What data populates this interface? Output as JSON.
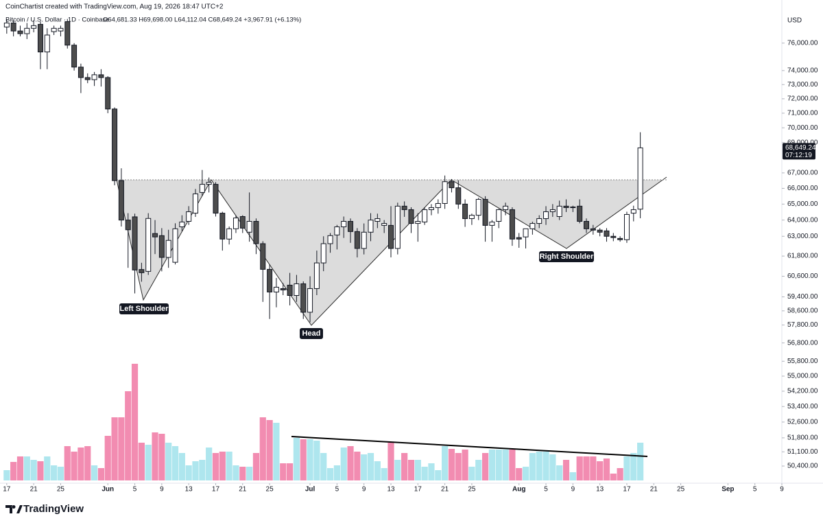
{
  "chart_data": {
    "type": "candlestick",
    "attribution": "CoinChartist created with TradingView.com, Aug 19, 2026 18:47 UTC+2",
    "symbol": "Bitcoin / U.S. Dollar · 1D · Coinbase",
    "ohlc_text": "O64,681.33 H69,698.00 L64,112.04 C68,649.24 +3,967.91 (+6.13%)",
    "currency": "USD",
    "last_price_label": "68,649.24",
    "countdown": "07:12:19",
    "brand": "TradingView",
    "annotations": [
      "Left Shoulder",
      "Head",
      "Right Shoulder"
    ],
    "log_scale": true,
    "grid": false,
    "up_color": "#ffffff",
    "down_color": "#4d4d4d",
    "volume_up_color": "#aee6ee",
    "volume_down_color": "#f28cb1",
    "xlim": [
      "2026-05-16",
      "2026-09-09"
    ],
    "xticks": [
      {
        "value": "2026-05-17",
        "label": "17"
      },
      {
        "value": "2026-05-21",
        "label": "21"
      },
      {
        "value": "2026-05-25",
        "label": "25"
      },
      {
        "value": "2026-06-01",
        "label": "Jun"
      },
      {
        "value": "2026-06-05",
        "label": "5"
      },
      {
        "value": "2026-06-09",
        "label": "9"
      },
      {
        "value": "2026-06-13",
        "label": "13"
      },
      {
        "value": "2026-06-17",
        "label": "17"
      },
      {
        "value": "2026-06-21",
        "label": "21"
      },
      {
        "value": "2026-06-25",
        "label": "25"
      },
      {
        "value": "2026-07-01",
        "label": "Jul"
      },
      {
        "value": "2026-07-05",
        "label": "5"
      },
      {
        "value": "2026-07-09",
        "label": "9"
      },
      {
        "value": "2026-07-13",
        "label": "13"
      },
      {
        "value": "2026-07-17",
        "label": "17"
      },
      {
        "value": "2026-07-21",
        "label": "21"
      },
      {
        "value": "2026-07-25",
        "label": "25"
      },
      {
        "value": "2026-08-01",
        "label": "Aug"
      },
      {
        "value": "2026-08-05",
        "label": "5"
      },
      {
        "value": "2026-08-09",
        "label": "9"
      },
      {
        "value": "2026-08-13",
        "label": "13"
      },
      {
        "value": "2026-08-17",
        "label": "17"
      },
      {
        "value": "2026-08-21",
        "label": "21"
      },
      {
        "value": "2026-08-25",
        "label": "25"
      },
      {
        "value": "2026-09-01",
        "label": "Sep"
      },
      {
        "value": "2026-09-05",
        "label": "5"
      },
      {
        "value": "2026-09-09",
        "label": "9"
      }
    ],
    "ylim": [
      49700,
      78200
    ],
    "yticks": [
      {
        "value": 76000,
        "label": "76,000.00"
      },
      {
        "value": 74000,
        "label": "74,000.00"
      },
      {
        "value": 73000,
        "label": "73,000.00"
      },
      {
        "value": 72000,
        "label": "72,000.00"
      },
      {
        "value": 71000,
        "label": "71,000.00"
      },
      {
        "value": 70000,
        "label": "70,000.00"
      },
      {
        "value": 69000,
        "label": "69,000.00"
      },
      {
        "value": 67000,
        "label": "67,000.00"
      },
      {
        "value": 66000,
        "label": "66,000.00"
      },
      {
        "value": 65000,
        "label": "65,000.00"
      },
      {
        "value": 64000,
        "label": "64,000.00"
      },
      {
        "value": 63000,
        "label": "63,000.00"
      },
      {
        "value": 61800,
        "label": "61,800.00"
      },
      {
        "value": 60600,
        "label": "60,600.00"
      },
      {
        "value": 59400,
        "label": "59,400.00"
      },
      {
        "value": 58600,
        "label": "58,600.00"
      },
      {
        "value": 57800,
        "label": "57,800.00"
      },
      {
        "value": 56800,
        "label": "56,800.00"
      },
      {
        "value": 55800,
        "label": "55,800.00"
      },
      {
        "value": 55000,
        "label": "55,000.00"
      },
      {
        "value": 54200,
        "label": "54,200.00"
      },
      {
        "value": 53400,
        "label": "53,400.00"
      },
      {
        "value": 52600,
        "label": "52,600.00"
      },
      {
        "value": 51800,
        "label": "51,800.00"
      },
      {
        "value": 51100,
        "label": "51,100.00"
      },
      {
        "value": 50400,
        "label": "50,400.00"
      }
    ],
    "x": [
      "2026-05-17",
      "2026-05-18",
      "2026-05-19",
      "2026-05-20",
      "2026-05-21",
      "2026-05-22",
      "2026-05-23",
      "2026-05-24",
      "2026-05-25",
      "2026-05-26",
      "2026-05-27",
      "2026-05-28",
      "2026-05-29",
      "2026-05-30",
      "2026-05-31",
      "2026-06-01",
      "2026-06-02",
      "2026-06-03",
      "2026-06-04",
      "2026-06-05",
      "2026-06-06",
      "2026-06-07",
      "2026-06-08",
      "2026-06-09",
      "2026-06-10",
      "2026-06-11",
      "2026-06-12",
      "2026-06-13",
      "2026-06-14",
      "2026-06-15",
      "2026-06-16",
      "2026-06-17",
      "2026-06-18",
      "2026-06-19",
      "2026-06-20",
      "2026-06-21",
      "2026-06-22",
      "2026-06-23",
      "2026-06-24",
      "2026-06-25",
      "2026-06-26",
      "2026-06-27",
      "2026-06-28",
      "2026-06-29",
      "2026-06-30",
      "2026-07-01",
      "2026-07-02",
      "2026-07-03",
      "2026-07-04",
      "2026-07-05",
      "2026-07-06",
      "2026-07-07",
      "2026-07-08",
      "2026-07-09",
      "2026-07-10",
      "2026-07-11",
      "2026-07-12",
      "2026-07-13",
      "2026-07-14",
      "2026-07-15",
      "2026-07-16",
      "2026-07-17",
      "2026-07-18",
      "2026-07-19",
      "2026-07-20",
      "2026-07-21",
      "2026-07-22",
      "2026-07-23",
      "2026-07-24",
      "2026-07-25",
      "2026-07-26",
      "2026-07-27",
      "2026-07-28",
      "2026-07-29",
      "2026-07-30",
      "2026-07-31",
      "2026-08-01",
      "2026-08-02",
      "2026-08-03",
      "2026-08-04",
      "2026-08-05",
      "2026-08-06",
      "2026-08-07",
      "2026-08-08",
      "2026-08-09",
      "2026-08-10",
      "2026-08-11",
      "2026-08-12",
      "2026-08-13",
      "2026-08-14",
      "2026-08-15",
      "2026-08-16",
      "2026-08-17",
      "2026-08-18",
      "2026-08-19"
    ],
    "open": [
      77200,
      77500,
      76900,
      76700,
      77100,
      77400,
      75350,
      76850,
      76900,
      77600,
      75850,
      74250,
      73500,
      73350,
      73700,
      73500,
      71290,
      66500,
      64000,
      64200,
      61000,
      60890,
      63170,
      63040,
      61720,
      61430,
      63580,
      63920,
      64430,
      65740,
      66260,
      66260,
      64430,
      62830,
      63460,
      64220,
      63250,
      63920,
      62550,
      61010,
      59680,
      59880,
      60080,
      59480,
      60160,
      58520,
      59880,
      61390,
      62550,
      63080,
      63580,
      63920,
      63290,
      62260,
      63250,
      63920,
      63670,
      63670,
      62260,
      64870,
      64650,
      63790,
      63880,
      64650,
      64780,
      65040,
      66430,
      66040,
      65000,
      64090,
      64300,
      65300,
      63670,
      63920,
      64650,
      64650,
      62920,
      62960,
      63460,
      63790,
      64090,
      64520,
      64220,
      64870,
      64780,
      64870,
      63920,
      63460,
      63380,
      63330,
      63000,
      62870,
      62790,
      64430,
      64681.33
    ],
    "high": [
      77800,
      77700,
      77300,
      77500,
      77700,
      77600,
      77100,
      77300,
      77300,
      77800,
      76000,
      74500,
      73800,
      73900,
      74100,
      73600,
      71400,
      67300,
      64430,
      64400,
      61400,
      64430,
      64000,
      63500,
      63400,
      63800,
      64300,
      64870,
      65960,
      67190,
      66700,
      66400,
      64520,
      63600,
      64300,
      64300,
      65740,
      64100,
      62700,
      61300,
      60500,
      60200,
      60800,
      60680,
      60300,
      60600,
      62130,
      63000,
      63200,
      63700,
      64220,
      64100,
      63500,
      63790,
      64430,
      64400,
      64000,
      64870,
      65090,
      65170,
      64800,
      64430,
      64780,
      65000,
      65300,
      66830,
      66600,
      66520,
      65300,
      64400,
      65400,
      65500,
      64000,
      64700,
      65090,
      64800,
      63200,
      63400,
      63900,
      64300,
      64870,
      65000,
      65220,
      65300,
      64900,
      65300,
      64100,
      63700,
      63500,
      63500,
      63200,
      63000,
      64520,
      64900,
      69698
    ],
    "low": [
      76700,
      76500,
      76500,
      76300,
      76800,
      74100,
      74100,
      76600,
      76500,
      75600,
      74000,
      72400,
      73100,
      72900,
      72860,
      71000,
      66200,
      63600,
      61100,
      59600,
      60280,
      60680,
      61920,
      60890,
      61100,
      61300,
      63300,
      63700,
      64200,
      65500,
      65740,
      64220,
      62130,
      62500,
      63200,
      63200,
      62670,
      61920,
      59110,
      58140,
      58800,
      59500,
      58910,
      59110,
      58140,
      57950,
      59500,
      60900,
      62000,
      62200,
      62900,
      62600,
      61720,
      61900,
      62700,
      63500,
      63200,
      61720,
      61900,
      64200,
      63200,
      62670,
      63700,
      64300,
      64400,
      64700,
      65740,
      64700,
      63580,
      63700,
      64000,
      62670,
      62670,
      63500,
      64300,
      62420,
      62300,
      62260,
      63100,
      63500,
      63700,
      64200,
      64000,
      64500,
      64500,
      63800,
      63200,
      63100,
      63000,
      62670,
      62700,
      62670,
      62600,
      63920,
      64112.04
    ],
    "close": [
      77500,
      76900,
      76700,
      77100,
      77300,
      75350,
      76600,
      77100,
      77100,
      75850,
      74250,
      73500,
      73350,
      73700,
      73500,
      71290,
      66500,
      64000,
      63400,
      60970,
      60810,
      64100,
      62960,
      61720,
      62750,
      63460,
      63880,
      64520,
      65650,
      66260,
      66390,
      64430,
      62830,
      63460,
      64130,
      63500,
      63920,
      62550,
      61010,
      59680,
      59960,
      59800,
      59480,
      60160,
      58520,
      59880,
      61390,
      62550,
      63040,
      63580,
      63920,
      63290,
      62260,
      63250,
      64000,
      64090,
      63790,
      62260,
      64870,
      64650,
      63790,
      63920,
      64650,
      64780,
      65040,
      66430,
      66040,
      65000,
      64090,
      64300,
      65300,
      63670,
      63880,
      64650,
      64870,
      62830,
      62830,
      63460,
      63790,
      64090,
      64520,
      64650,
      64870,
      64780,
      64820,
      63920,
      63460,
      63380,
      63250,
      63000,
      62920,
      62790,
      64350,
      64650,
      68649.24
    ],
    "volume": [
      15,
      27,
      35,
      35,
      30,
      28,
      35,
      22,
      20,
      50,
      42,
      48,
      50,
      22,
      18,
      65,
      92,
      92,
      130,
      170,
      55,
      52,
      70,
      68,
      55,
      50,
      40,
      22,
      28,
      30,
      48,
      40,
      42,
      42,
      22,
      20,
      20,
      40,
      92,
      88,
      84,
      25,
      25,
      62,
      60,
      60,
      58,
      40,
      18,
      22,
      48,
      50,
      42,
      38,
      40,
      28,
      18,
      55,
      30,
      40,
      30,
      30,
      20,
      25,
      15,
      50,
      46,
      40,
      45,
      20,
      30,
      40,
      45,
      45,
      45,
      45,
      18,
      20,
      40,
      42,
      42,
      38,
      22,
      30,
      12,
      35,
      35,
      35,
      28,
      32,
      10,
      18,
      35,
      40,
      55
    ]
  }
}
